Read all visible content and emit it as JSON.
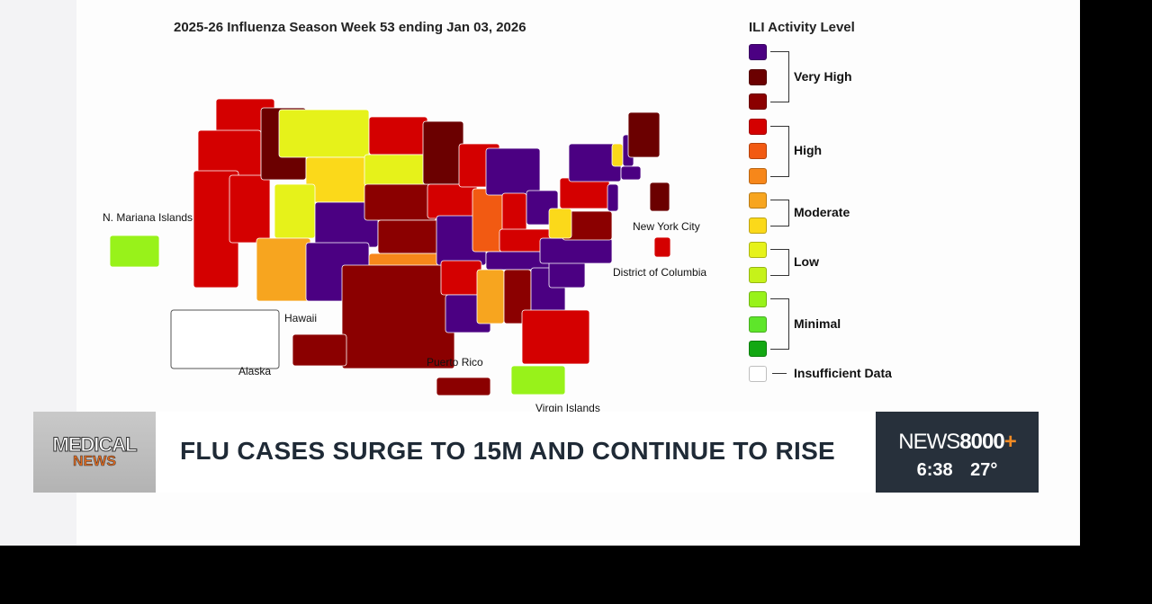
{
  "map": {
    "title": "2025-26 Influenza Season Week 53 ending Jan 03, 2026",
    "labels": {
      "mariana": "N. Mariana Islands",
      "hawaii": "Hawaii",
      "alaska": "Alaska",
      "puerto_rico": "Puerto Rico",
      "virgin_islands": "Virgin Islands",
      "nyc": "New York City",
      "dc": "District of Columbia"
    },
    "colors": [
      "#4b0082",
      "#6b0000",
      "#8b0000",
      "#d40000",
      "#f25a12",
      "#f7871a",
      "#f7a51f",
      "#fbd91a",
      "#e6f21a",
      "#c6f21a",
      "#98f21a",
      "#5ee62a",
      "#13a813",
      "#ffffff"
    ],
    "regions": {
      "WA": 3,
      "OR": 3,
      "CA": 3,
      "NV": 3,
      "ID": 1,
      "MT": 8,
      "WY": 7,
      "UT": 8,
      "CO": 0,
      "AZ": 6,
      "NM": 0,
      "ND": 3,
      "SD": 8,
      "NE": 2,
      "KS": 2,
      "OK": 5,
      "TX": 2,
      "MN": 1,
      "IA": 3,
      "MO": 0,
      "AR": 3,
      "LA": 0,
      "WI": 3,
      "IL": 4,
      "MI": 0,
      "IN": 3,
      "OH": 0,
      "KY": 3,
      "TN": 0,
      "MS": 6,
      "AL": 2,
      "GA": 0,
      "FL": 3,
      "SC": 0,
      "NC": 0,
      "VA": 2,
      "WV": 7,
      "PA": 3,
      "NY": 0,
      "VT": 7,
      "NH": 0,
      "ME": 1,
      "NJ": 0,
      "MA": 0,
      "AK": 13,
      "HI": 2,
      "PR": 2,
      "VI": 10,
      "MP": 10,
      "NYC": 3,
      "DC": 1
    }
  },
  "legend": {
    "title": "ILI Activity Level",
    "groups": [
      "Very High",
      "High",
      "Moderate",
      "Low",
      "Minimal"
    ],
    "insufficient": "Insufficient Data"
  },
  "lower_third": {
    "logo_line1": "MEDICAL",
    "logo_line2": "NEWS",
    "headline": "FLU CASES SURGE TO 15M AND CONTINUE TO RISE",
    "brand_light": "NEWS",
    "brand_bold": "8000",
    "brand_plus": "+",
    "time": "6:38",
    "temp": "27°"
  }
}
